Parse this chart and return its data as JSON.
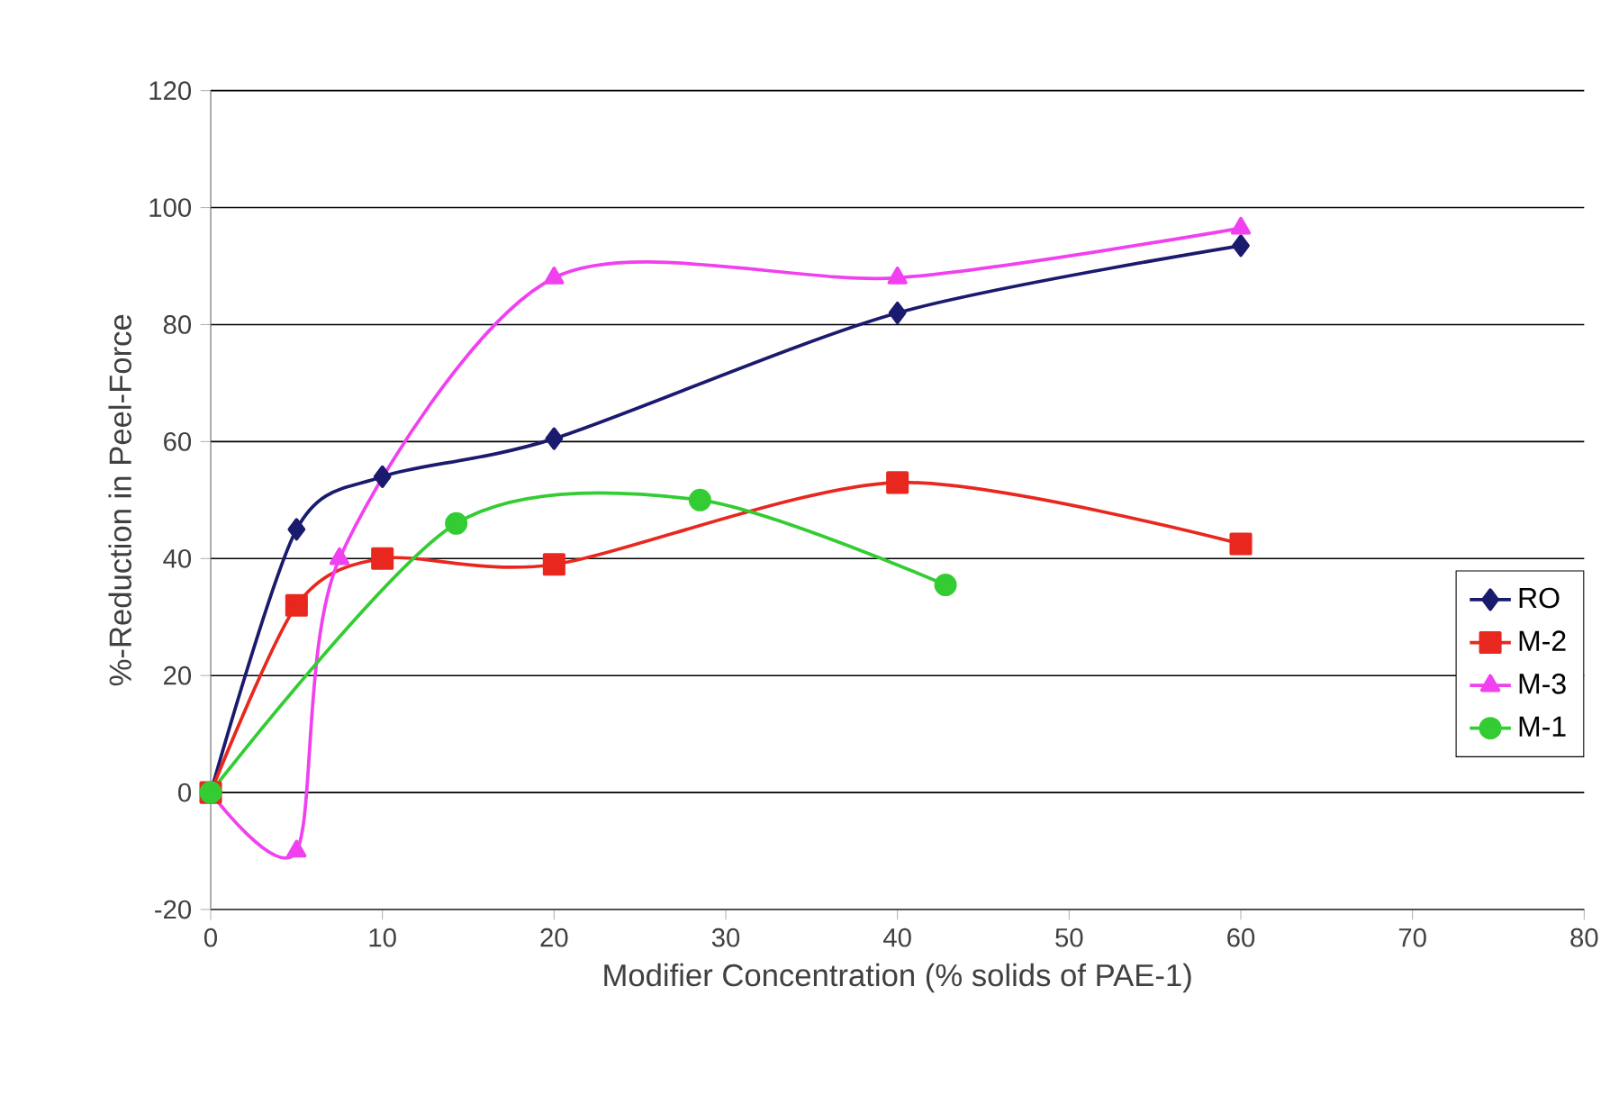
{
  "chart_data": {
    "type": "line",
    "xlabel": "Modifier Concentration (% solids of PAE-1)",
    "ylabel": "%-Reduction in Peel-Force",
    "xlim": [
      0,
      80
    ],
    "ylim": [
      -20,
      120
    ],
    "xticks": [
      0,
      10,
      20,
      30,
      40,
      50,
      60,
      70,
      80
    ],
    "yticks": [
      -20,
      0,
      20,
      40,
      60,
      80,
      100,
      120
    ],
    "grid": "y",
    "legend": "right",
    "series": [
      {
        "name": "RO",
        "color": "#1a1a6e",
        "marker": "diamond",
        "x": [
          0,
          5,
          10,
          20,
          40,
          60
        ],
        "values": [
          0,
          45,
          54,
          60.5,
          82,
          93.5
        ]
      },
      {
        "name": "M-2",
        "color": "#e8281e",
        "marker": "square",
        "x": [
          0,
          5,
          10,
          20,
          40,
          60
        ],
        "values": [
          0,
          32,
          40,
          39,
          53,
          42.5
        ]
      },
      {
        "name": "M-3",
        "color": "#f040f0",
        "marker": "triangle",
        "x": [
          0,
          5,
          7.5,
          20,
          40,
          60
        ],
        "values": [
          0,
          -10,
          40,
          88,
          88,
          96.5
        ]
      },
      {
        "name": "M-1",
        "color": "#33cc33",
        "marker": "circle",
        "x": [
          0,
          14.3,
          28.5,
          42.8
        ],
        "values": [
          0,
          46,
          50,
          35.5
        ]
      }
    ]
  }
}
